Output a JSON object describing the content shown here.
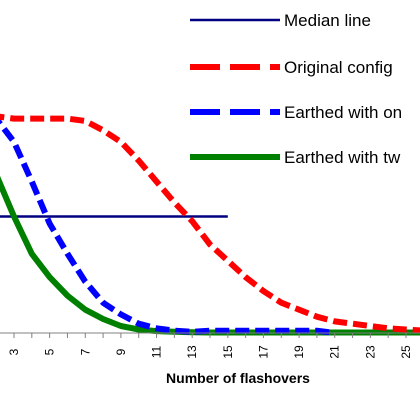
{
  "chart_data": {
    "type": "line",
    "title": "",
    "xlabel": "Number of flashovers",
    "ylabel": "",
    "x_ticks": [
      "3",
      "5",
      "7",
      "9",
      "11",
      "13",
      "15",
      "17",
      "19",
      "21",
      "23",
      "25"
    ],
    "xlim": [
      1.7,
      26.5
    ],
    "ylim": [
      0,
      1
    ],
    "grid": false,
    "legend_position": "top-right",
    "series": [
      {
        "name": "Median line",
        "color": "#000080",
        "style": "solid-thin",
        "x": [
          1.7,
          15
        ],
        "y": [
          0.5,
          0.5
        ]
      },
      {
        "name": "Original config",
        "color": "#ff0000",
        "style": "dashed-thick",
        "x": [
          1.7,
          2,
          3,
          4,
          5,
          6,
          7,
          8,
          9,
          10,
          11,
          12,
          13,
          14,
          15,
          16,
          17,
          18,
          19,
          20,
          21,
          22,
          23,
          24,
          25,
          26,
          26.5
        ],
        "y": [
          0.94,
          0.93,
          0.92,
          0.92,
          0.92,
          0.92,
          0.91,
          0.87,
          0.82,
          0.74,
          0.65,
          0.56,
          0.48,
          0.38,
          0.31,
          0.24,
          0.18,
          0.13,
          0.1,
          0.07,
          0.05,
          0.04,
          0.03,
          0.02,
          0.015,
          0.01,
          0.01
        ]
      },
      {
        "name": "Earthed with on",
        "color": "#0000ff",
        "style": "dashed-thick",
        "x": [
          1.7,
          2,
          3,
          4,
          5,
          6,
          7,
          8,
          9,
          10,
          11,
          12,
          13,
          14,
          15,
          16,
          17,
          18,
          19,
          20,
          21
        ],
        "y": [
          0.94,
          0.92,
          0.82,
          0.65,
          0.47,
          0.34,
          0.22,
          0.13,
          0.08,
          0.04,
          0.02,
          0.01,
          0.005,
          0.01,
          0.01,
          0.01,
          0.01,
          0.01,
          0.01,
          0.01,
          0.0
        ]
      },
      {
        "name": "Earthed with tw",
        "color": "#008000",
        "style": "solid-thick",
        "x": [
          1.7,
          2,
          3,
          4,
          5,
          6,
          7,
          8,
          9,
          10,
          11,
          12,
          13,
          14,
          15,
          16,
          17,
          18,
          19,
          20,
          21,
          22,
          23,
          24,
          25,
          26,
          26.5
        ],
        "y": [
          0.75,
          0.68,
          0.5,
          0.34,
          0.24,
          0.16,
          0.1,
          0.06,
          0.03,
          0.015,
          0.008,
          0.005,
          0.003,
          0.002,
          0.002,
          0.002,
          0.002,
          0.002,
          0.002,
          0.002,
          0.002,
          0.002,
          0.002,
          0.002,
          0.002,
          0.002,
          0.002
        ]
      }
    ]
  }
}
